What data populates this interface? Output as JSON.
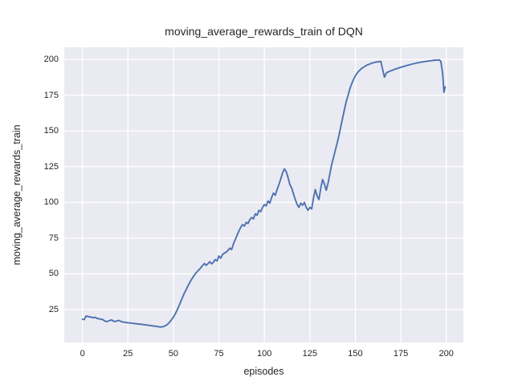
{
  "chart_data": {
    "type": "line",
    "title": "moving_average_rewards_train of DQN",
    "xlabel": "episodes",
    "ylabel": "moving_average_rewards_train",
    "x_ticks": [
      0,
      25,
      50,
      75,
      100,
      125,
      150,
      175,
      200
    ],
    "y_ticks": [
      25,
      50,
      75,
      100,
      125,
      150,
      175,
      200
    ],
    "xlim": [
      -10,
      209.4
    ],
    "ylim": [
      2,
      208.5
    ],
    "grid": true,
    "legend": "none",
    "colors": {
      "line": "#4C72B0",
      "plot_background": "#EAEAF2",
      "gridline": "#FFFFFF",
      "text": "#262626",
      "figure_background": "#FFFFFF"
    },
    "series": [
      {
        "name": "moving_average_rewards_train",
        "points": [
          [
            0,
            18.2
          ],
          [
            1,
            18.0
          ],
          [
            2,
            20.6
          ],
          [
            3,
            20.2
          ],
          [
            4,
            19.9
          ],
          [
            5,
            19.6
          ],
          [
            6,
            19.3
          ],
          [
            7,
            19.6
          ],
          [
            8,
            18.9
          ],
          [
            9,
            18.6
          ],
          [
            10,
            18.4
          ],
          [
            11,
            18.1
          ],
          [
            12,
            17.3
          ],
          [
            13,
            16.6
          ],
          [
            14,
            16.9
          ],
          [
            15,
            17.4
          ],
          [
            16,
            17.8
          ],
          [
            17,
            17.0
          ],
          [
            18,
            16.7
          ],
          [
            19,
            17.1
          ],
          [
            20,
            17.5
          ],
          [
            21,
            16.8
          ],
          [
            22,
            16.4
          ],
          [
            23,
            16.2
          ],
          [
            24,
            16.0
          ],
          [
            25,
            15.8
          ],
          [
            26,
            15.7
          ],
          [
            27,
            15.5
          ],
          [
            28,
            15.4
          ],
          [
            29,
            15.2
          ],
          [
            30,
            15.1
          ],
          [
            31,
            14.9
          ],
          [
            32,
            14.8
          ],
          [
            33,
            14.6
          ],
          [
            34,
            14.4
          ],
          [
            35,
            14.3
          ],
          [
            36,
            14.1
          ],
          [
            37,
            13.9
          ],
          [
            38,
            13.7
          ],
          [
            39,
            13.5
          ],
          [
            40,
            13.4
          ],
          [
            41,
            13.2
          ],
          [
            42,
            13.0
          ],
          [
            43,
            12.8
          ],
          [
            44,
            13.0
          ],
          [
            45,
            13.4
          ],
          [
            46,
            14.0
          ],
          [
            47,
            15.0
          ],
          [
            48,
            16.3
          ],
          [
            49,
            18.0
          ],
          [
            50,
            19.8
          ],
          [
            51,
            22.0
          ],
          [
            52,
            24.5
          ],
          [
            53,
            27.5
          ],
          [
            54,
            30.5
          ],
          [
            55,
            33.5
          ],
          [
            56,
            36.5
          ],
          [
            57,
            39.0
          ],
          [
            58,
            41.5
          ],
          [
            59,
            44.0
          ],
          [
            60,
            46.2
          ],
          [
            61,
            48.2
          ],
          [
            62,
            50.0
          ],
          [
            63,
            51.5
          ],
          [
            64,
            52.8
          ],
          [
            65,
            54.2
          ],
          [
            66,
            55.8
          ],
          [
            67,
            57.3
          ],
          [
            68,
            56.0
          ],
          [
            69,
            57.2
          ],
          [
            70,
            58.5
          ],
          [
            71,
            57.0
          ],
          [
            72,
            58.2
          ],
          [
            73,
            60.0
          ],
          [
            74,
            59.0
          ],
          [
            75,
            62.5
          ],
          [
            76,
            61.0
          ],
          [
            77,
            63.5
          ],
          [
            78,
            64.5
          ],
          [
            79,
            65.2
          ],
          [
            80,
            66.5
          ],
          [
            81,
            68.0
          ],
          [
            82,
            67.0
          ],
          [
            83,
            71.0
          ],
          [
            84,
            74.0
          ],
          [
            85,
            77.0
          ],
          [
            86,
            80.0
          ],
          [
            87,
            82.5
          ],
          [
            88,
            84.5
          ],
          [
            89,
            83.5
          ],
          [
            90,
            86.0
          ],
          [
            91,
            85.2
          ],
          [
            92,
            88.0
          ],
          [
            93,
            89.5
          ],
          [
            94,
            88.5
          ],
          [
            95,
            92.0
          ],
          [
            96,
            91.0
          ],
          [
            97,
            94.5
          ],
          [
            98,
            93.5
          ],
          [
            99,
            96.5
          ],
          [
            100,
            98.5
          ],
          [
            101,
            97.5
          ],
          [
            102,
            101.0
          ],
          [
            103,
            99.5
          ],
          [
            104,
            103.5
          ],
          [
            105,
            106.5
          ],
          [
            106,
            105.0
          ],
          [
            107,
            109.0
          ],
          [
            108,
            112.5
          ],
          [
            109,
            116.5
          ],
          [
            110,
            120.5
          ],
          [
            111,
            123.5
          ],
          [
            112,
            121.5
          ],
          [
            113,
            117.5
          ],
          [
            114,
            112.5
          ],
          [
            115,
            110.0
          ],
          [
            116,
            106.0
          ],
          [
            117,
            102.0
          ],
          [
            118,
            98.5
          ],
          [
            119,
            96.5
          ],
          [
            120,
            99.5
          ],
          [
            121,
            98.0
          ],
          [
            122,
            100.0
          ],
          [
            123,
            96.5
          ],
          [
            124,
            94.5
          ],
          [
            125,
            96.5
          ],
          [
            126,
            95.5
          ],
          [
            127,
            103.0
          ],
          [
            128,
            109.0
          ],
          [
            129,
            104.5
          ],
          [
            130,
            102.0
          ],
          [
            131,
            110.0
          ],
          [
            132,
            116.0
          ],
          [
            133,
            113.0
          ],
          [
            134,
            108.5
          ],
          [
            135,
            113.5
          ],
          [
            136,
            120.0
          ],
          [
            137,
            126.5
          ],
          [
            138,
            131.5
          ],
          [
            139,
            136.5
          ],
          [
            140,
            141.5
          ],
          [
            141,
            147.0
          ],
          [
            142,
            153.0
          ],
          [
            143,
            159.0
          ],
          [
            144,
            165.0
          ],
          [
            145,
            170.5
          ],
          [
            146,
            175.0
          ],
          [
            147,
            179.5
          ],
          [
            148,
            183.0
          ],
          [
            149,
            186.0
          ],
          [
            150,
            188.5
          ],
          [
            151,
            190.5
          ],
          [
            152,
            192.0
          ],
          [
            153,
            193.2
          ],
          [
            154,
            194.2
          ],
          [
            155,
            195.0
          ],
          [
            156,
            195.8
          ],
          [
            157,
            196.4
          ],
          [
            158,
            196.9
          ],
          [
            159,
            197.4
          ],
          [
            160,
            197.8
          ],
          [
            161,
            198.1
          ],
          [
            162,
            198.3
          ],
          [
            163,
            198.5
          ],
          [
            164,
            198.6
          ],
          [
            165,
            193.0
          ],
          [
            166,
            187.6
          ],
          [
            167,
            190.5
          ],
          [
            168,
            191.3
          ],
          [
            169,
            191.8
          ],
          [
            170,
            192.3
          ],
          [
            171,
            192.8
          ],
          [
            172,
            193.3
          ],
          [
            173,
            193.7
          ],
          [
            174,
            194.1
          ],
          [
            175,
            194.5
          ],
          [
            176,
            194.9
          ],
          [
            177,
            195.3
          ],
          [
            178,
            195.7
          ],
          [
            179,
            196.0
          ],
          [
            180,
            196.4
          ],
          [
            181,
            196.7
          ],
          [
            182,
            197.0
          ],
          [
            183,
            197.3
          ],
          [
            184,
            197.6
          ],
          [
            185,
            197.9
          ],
          [
            186,
            198.1
          ],
          [
            187,
            198.3
          ],
          [
            188,
            198.5
          ],
          [
            189,
            198.7
          ],
          [
            190,
            198.9
          ],
          [
            191,
            199.1
          ],
          [
            192,
            199.2
          ],
          [
            193,
            199.4
          ],
          [
            194,
            199.5
          ],
          [
            195,
            199.6
          ],
          [
            196,
            199.7
          ],
          [
            197,
            198.8
          ],
          [
            198,
            190.0
          ],
          [
            198.7,
            177.0
          ],
          [
            199.4,
            180.8
          ]
        ]
      }
    ]
  }
}
